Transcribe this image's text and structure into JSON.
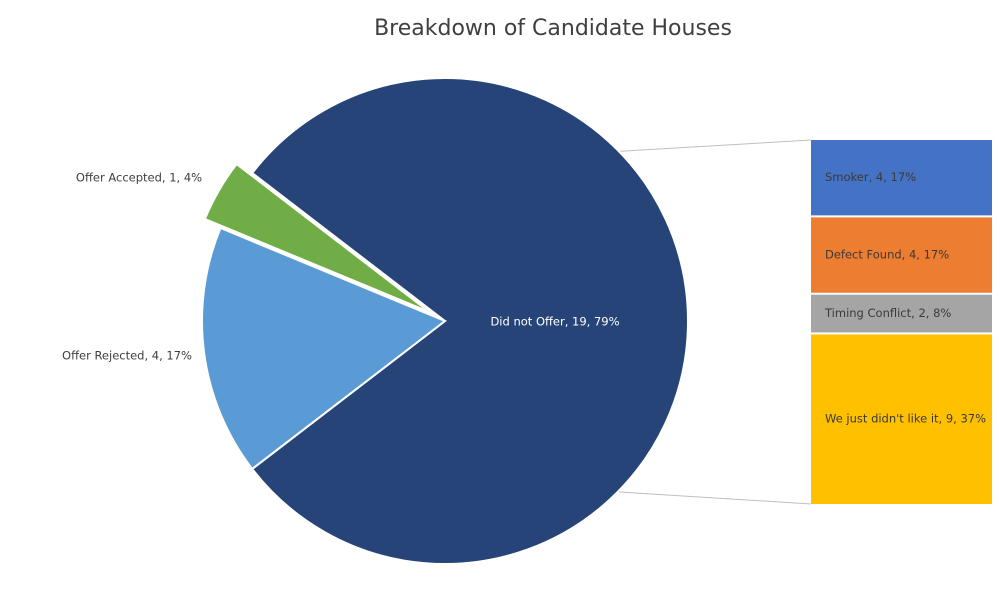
{
  "chart_data": {
    "type": "bar-of-pie",
    "title": "Breakdown of Candidate Houses",
    "pie": {
      "slices": [
        {
          "name": "Did not Offer",
          "value": 19,
          "percent": 79,
          "label": "Did not Offer, 19, 79%",
          "color": "#264478",
          "exploded": false
        },
        {
          "name": "Offer Rejected",
          "value": 4,
          "percent": 17,
          "label": "Offer Rejected, 4, 17%",
          "color": "#5b9bd5",
          "exploded": false
        },
        {
          "name": "Offer Accepted",
          "value": 1,
          "percent": 4,
          "label": "Offer Accepted, 1, 4%",
          "color": "#70ad47",
          "exploded": true
        }
      ]
    },
    "breakdown_of": "Did not Offer",
    "bar": {
      "segments": [
        {
          "name": "Smoker",
          "value": 4,
          "percent": 17,
          "label": "Smoker, 4, 17%",
          "color": "#4472c4"
        },
        {
          "name": "Defect Found",
          "value": 4,
          "percent": 17,
          "label": "Defect Found, 4, 17%",
          "color": "#ed7d31"
        },
        {
          "name": "Timing Conflict",
          "value": 2,
          "percent": 8,
          "label": "Timing Conflict, 2, 8%",
          "color": "#a5a5a5"
        },
        {
          "name": "We just didn't like it",
          "value": 9,
          "percent": 37,
          "label": "We just didn't like it, 9, 37%",
          "color": "#ffc000"
        }
      ]
    },
    "grid": false,
    "legend": "none"
  }
}
